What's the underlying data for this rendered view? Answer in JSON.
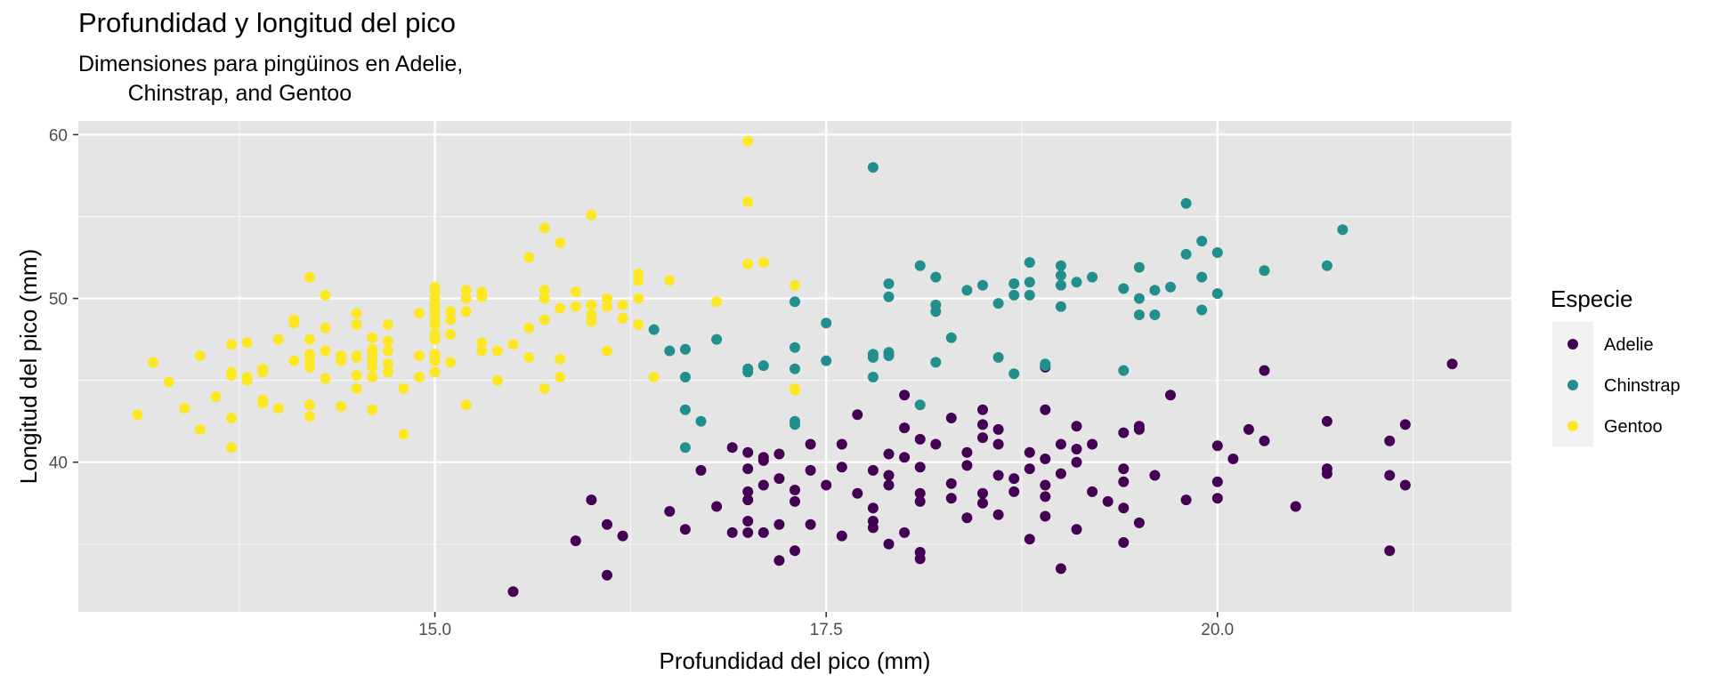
{
  "chart_data": {
    "type": "scatter",
    "title": "Profundidad y longitud del pico",
    "subtitle": "Dimensiones para pingüinos en Adelie,\n        Chinstrap, and Gentoo",
    "xlabel": "Profundidad del pico (mm)",
    "ylabel": "Longitud del pico (mm)",
    "xlim": [
      13.1,
      21.5
    ],
    "ylim": [
      32.1,
      59.6
    ],
    "x_ticks": [
      15.0,
      17.5,
      20.0
    ],
    "x_tick_labels": [
      "15.0",
      "17.5",
      "20.0"
    ],
    "y_ticks": [
      40,
      50,
      60
    ],
    "y_tick_labels": [
      "40",
      "50",
      "60"
    ],
    "grid": true,
    "legend": {
      "title": "Especie",
      "position": "right"
    },
    "series": [
      {
        "name": "Adelie",
        "color": "#440154",
        "points": [
          [
            15.5,
            32.1
          ],
          [
            16.1,
            33.1
          ],
          [
            19.0,
            33.5
          ],
          [
            17.2,
            34.0
          ],
          [
            18.1,
            34.1
          ],
          [
            18.1,
            34.5
          ],
          [
            17.3,
            34.6
          ],
          [
            21.1,
            34.6
          ],
          [
            16.2,
            35.5
          ],
          [
            15.9,
            35.2
          ],
          [
            17.6,
            35.5
          ],
          [
            17.9,
            35.0
          ],
          [
            18.8,
            35.3
          ],
          [
            19.4,
            35.1
          ],
          [
            18.0,
            35.7
          ],
          [
            16.6,
            35.9
          ],
          [
            16.9,
            35.7
          ],
          [
            17.0,
            35.7
          ],
          [
            17.1,
            35.7
          ],
          [
            17.8,
            36.0
          ],
          [
            19.1,
            35.9
          ],
          [
            16.1,
            36.2
          ],
          [
            16.5,
            37.0
          ],
          [
            17.0,
            36.4
          ],
          [
            17.2,
            36.2
          ],
          [
            17.4,
            36.2
          ],
          [
            17.8,
            36.4
          ],
          [
            18.4,
            36.6
          ],
          [
            18.6,
            36.8
          ],
          [
            18.9,
            36.7
          ],
          [
            19.5,
            36.3
          ],
          [
            19.4,
            37.2
          ],
          [
            20.5,
            37.3
          ],
          [
            20.7,
            39.3
          ],
          [
            16.0,
            37.7
          ],
          [
            16.8,
            37.3
          ],
          [
            17.0,
            37.7
          ],
          [
            17.3,
            37.6
          ],
          [
            17.8,
            37.2
          ],
          [
            18.1,
            37.6
          ],
          [
            18.3,
            37.8
          ],
          [
            18.5,
            37.5
          ],
          [
            18.9,
            37.9
          ],
          [
            19.3,
            37.6
          ],
          [
            19.8,
            37.7
          ],
          [
            20.0,
            37.8
          ],
          [
            17.0,
            38.2
          ],
          [
            17.1,
            38.6
          ],
          [
            17.2,
            39.0
          ],
          [
            17.3,
            38.3
          ],
          [
            17.5,
            38.6
          ],
          [
            17.7,
            38.1
          ],
          [
            17.9,
            38.6
          ],
          [
            18.1,
            38.1
          ],
          [
            18.3,
            38.7
          ],
          [
            18.5,
            38.1
          ],
          [
            18.7,
            38.2
          ],
          [
            18.9,
            38.6
          ],
          [
            19.2,
            38.2
          ],
          [
            19.4,
            38.8
          ],
          [
            20.0,
            38.8
          ],
          [
            20.1,
            40.2
          ],
          [
            21.2,
            38.6
          ],
          [
            21.1,
            39.2
          ],
          [
            16.7,
            39.5
          ],
          [
            17.0,
            39.6
          ],
          [
            17.1,
            40.3
          ],
          [
            17.4,
            39.5
          ],
          [
            17.6,
            39.7
          ],
          [
            17.8,
            39.5
          ],
          [
            17.9,
            39.2
          ],
          [
            18.1,
            39.7
          ],
          [
            18.4,
            39.8
          ],
          [
            18.6,
            39.2
          ],
          [
            18.7,
            39.0
          ],
          [
            18.8,
            39.6
          ],
          [
            19.0,
            39.3
          ],
          [
            19.1,
            40.0
          ],
          [
            19.4,
            39.6
          ],
          [
            19.6,
            39.2
          ],
          [
            20.7,
            39.6
          ],
          [
            16.9,
            40.9
          ],
          [
            17.0,
            40.6
          ],
          [
            17.1,
            40.1
          ],
          [
            17.2,
            40.5
          ],
          [
            17.4,
            41.1
          ],
          [
            17.6,
            41.1
          ],
          [
            17.9,
            40.5
          ],
          [
            18.0,
            40.3
          ],
          [
            18.2,
            41.1
          ],
          [
            18.4,
            40.6
          ],
          [
            18.5,
            41.5
          ],
          [
            18.6,
            41.1
          ],
          [
            18.8,
            40.6
          ],
          [
            18.9,
            40.2
          ],
          [
            19.0,
            41.1
          ],
          [
            19.1,
            40.8
          ],
          [
            19.2,
            41.1
          ],
          [
            20.0,
            41.0
          ],
          [
            17.7,
            42.9
          ],
          [
            18.0,
            42.1
          ],
          [
            18.1,
            41.4
          ],
          [
            18.3,
            42.7
          ],
          [
            18.5,
            42.3
          ],
          [
            18.5,
            43.2
          ],
          [
            18.6,
            42.0
          ],
          [
            18.9,
            43.2
          ],
          [
            19.1,
            42.2
          ],
          [
            19.4,
            41.8
          ],
          [
            19.5,
            42.0
          ],
          [
            19.5,
            42.2
          ],
          [
            19.7,
            44.1
          ],
          [
            20.2,
            42.0
          ],
          [
            20.3,
            41.3
          ],
          [
            20.7,
            42.5
          ],
          [
            21.2,
            42.3
          ],
          [
            21.1,
            41.3
          ],
          [
            18.0,
            44.1
          ],
          [
            18.9,
            45.8
          ],
          [
            20.3,
            45.6
          ],
          [
            21.5,
            46.0
          ]
        ]
      },
      {
        "name": "Chinstrap",
        "color": "#21908C",
        "points": [
          [
            16.4,
            48.1
          ],
          [
            16.5,
            46.8
          ],
          [
            16.6,
            46.9
          ],
          [
            16.6,
            45.2
          ],
          [
            16.6,
            43.2
          ],
          [
            16.6,
            40.9
          ],
          [
            16.7,
            42.5
          ],
          [
            16.8,
            47.5
          ],
          [
            17.0,
            45.7
          ],
          [
            17.0,
            45.5
          ],
          [
            17.1,
            45.9
          ],
          [
            17.3,
            49.8
          ],
          [
            17.3,
            47.0
          ],
          [
            17.3,
            45.7
          ],
          [
            17.3,
            42.5
          ],
          [
            17.3,
            42.3
          ],
          [
            17.5,
            48.5
          ],
          [
            17.5,
            46.2
          ],
          [
            17.8,
            58.0
          ],
          [
            17.8,
            46.6
          ],
          [
            17.8,
            46.4
          ],
          [
            17.8,
            45.2
          ],
          [
            17.9,
            50.9
          ],
          [
            17.9,
            50.1
          ],
          [
            17.9,
            46.7
          ],
          [
            17.9,
            46.5
          ],
          [
            18.1,
            52.0
          ],
          [
            18.1,
            43.5
          ],
          [
            18.2,
            51.3
          ],
          [
            18.2,
            49.6
          ],
          [
            18.2,
            49.2
          ],
          [
            18.2,
            46.1
          ],
          [
            18.3,
            47.6
          ],
          [
            18.4,
            50.5
          ],
          [
            18.5,
            50.8
          ],
          [
            18.6,
            49.7
          ],
          [
            18.6,
            46.4
          ],
          [
            18.7,
            50.2
          ],
          [
            18.7,
            45.4
          ],
          [
            18.7,
            50.9
          ],
          [
            18.8,
            52.2
          ],
          [
            18.8,
            51.0
          ],
          [
            18.8,
            50.2
          ],
          [
            18.9,
            46.0
          ],
          [
            18.9,
            45.9
          ],
          [
            19.0,
            52.0
          ],
          [
            19.0,
            51.4
          ],
          [
            19.0,
            50.8
          ],
          [
            19.0,
            49.5
          ],
          [
            19.1,
            51.0
          ],
          [
            19.2,
            51.3
          ],
          [
            19.4,
            50.6
          ],
          [
            19.4,
            45.6
          ],
          [
            19.5,
            51.9
          ],
          [
            19.5,
            50.0
          ],
          [
            19.5,
            49.0
          ],
          [
            19.6,
            50.5
          ],
          [
            19.6,
            49.0
          ],
          [
            19.7,
            50.7
          ],
          [
            19.8,
            55.8
          ],
          [
            19.8,
            52.7
          ],
          [
            19.9,
            53.5
          ],
          [
            19.9,
            51.3
          ],
          [
            19.9,
            49.3
          ],
          [
            20.0,
            52.8
          ],
          [
            20.0,
            50.3
          ],
          [
            20.3,
            51.7
          ],
          [
            20.7,
            52.0
          ],
          [
            20.8,
            54.2
          ]
        ]
      },
      {
        "name": "Gentoo",
        "color": "#FDE725",
        "points": [
          [
            13.1,
            42.9
          ],
          [
            13.2,
            46.1
          ],
          [
            13.3,
            44.9
          ],
          [
            13.4,
            43.3
          ],
          [
            13.5,
            46.5
          ],
          [
            13.5,
            42.0
          ],
          [
            13.6,
            44.0
          ],
          [
            13.7,
            47.2
          ],
          [
            13.7,
            45.5
          ],
          [
            13.7,
            45.3
          ],
          [
            13.7,
            42.7
          ],
          [
            13.7,
            40.9
          ],
          [
            13.8,
            47.3
          ],
          [
            13.8,
            45.0
          ],
          [
            13.8,
            45.2
          ],
          [
            13.9,
            45.5
          ],
          [
            13.9,
            43.8
          ],
          [
            13.9,
            45.7
          ],
          [
            13.9,
            43.6
          ],
          [
            14.0,
            47.5
          ],
          [
            14.0,
            43.3
          ],
          [
            14.1,
            48.7
          ],
          [
            14.1,
            48.5
          ],
          [
            14.1,
            46.2
          ],
          [
            14.2,
            47.5
          ],
          [
            14.2,
            46.6
          ],
          [
            14.2,
            46.3
          ],
          [
            14.2,
            45.8
          ],
          [
            14.2,
            43.5
          ],
          [
            14.2,
            42.8
          ],
          [
            14.2,
            51.3
          ],
          [
            14.3,
            50.2
          ],
          [
            14.3,
            48.2
          ],
          [
            14.3,
            46.8
          ],
          [
            14.3,
            45.1
          ],
          [
            14.4,
            46.5
          ],
          [
            14.4,
            46.2
          ],
          [
            14.4,
            43.4
          ],
          [
            14.5,
            48.4
          ],
          [
            14.5,
            46.4
          ],
          [
            14.5,
            45.3
          ],
          [
            14.5,
            44.5
          ],
          [
            14.5,
            49.1
          ],
          [
            14.5,
            46.5
          ],
          [
            14.6,
            47.6
          ],
          [
            14.6,
            46.9
          ],
          [
            14.6,
            46.6
          ],
          [
            14.6,
            46.2
          ],
          [
            14.6,
            45.8
          ],
          [
            14.6,
            45.2
          ],
          [
            14.6,
            43.2
          ],
          [
            14.7,
            48.4
          ],
          [
            14.7,
            47.4
          ],
          [
            14.7,
            46.8
          ],
          [
            14.7,
            46.0
          ],
          [
            14.7,
            45.5
          ],
          [
            14.8,
            44.5
          ],
          [
            14.8,
            41.7
          ],
          [
            14.9,
            49.1
          ],
          [
            14.9,
            46.5
          ],
          [
            14.9,
            45.2
          ],
          [
            15.0,
            50.7
          ],
          [
            15.0,
            50.4
          ],
          [
            15.0,
            50.0
          ],
          [
            15.0,
            49.6
          ],
          [
            15.0,
            49.2
          ],
          [
            15.0,
            48.8
          ],
          [
            15.0,
            48.4
          ],
          [
            15.0,
            47.8
          ],
          [
            15.0,
            47.5
          ],
          [
            15.0,
            46.6
          ],
          [
            15.0,
            46.4
          ],
          [
            15.0,
            45.5
          ],
          [
            15.0,
            46.2
          ],
          [
            15.1,
            49.2
          ],
          [
            15.1,
            48.7
          ],
          [
            15.1,
            47.8
          ],
          [
            15.1,
            46.1
          ],
          [
            15.2,
            50.5
          ],
          [
            15.2,
            50.0
          ],
          [
            15.2,
            49.2
          ],
          [
            15.2,
            43.5
          ],
          [
            15.3,
            50.4
          ],
          [
            15.3,
            50.1
          ],
          [
            15.3,
            47.3
          ],
          [
            15.3,
            46.8
          ],
          [
            15.4,
            46.8
          ],
          [
            15.4,
            45.0
          ],
          [
            15.5,
            47.2
          ],
          [
            15.6,
            52.5
          ],
          [
            15.6,
            48.2
          ],
          [
            15.6,
            46.4
          ],
          [
            15.7,
            54.3
          ],
          [
            15.7,
            50.5
          ],
          [
            15.7,
            50.0
          ],
          [
            15.7,
            48.7
          ],
          [
            15.7,
            44.5
          ],
          [
            15.8,
            53.4
          ],
          [
            15.8,
            49.4
          ],
          [
            15.8,
            46.3
          ],
          [
            15.8,
            45.2
          ],
          [
            15.9,
            50.4
          ],
          [
            15.9,
            49.5
          ],
          [
            16.0,
            55.1
          ],
          [
            16.0,
            49.6
          ],
          [
            16.0,
            48.6
          ],
          [
            16.0,
            49.0
          ],
          [
            16.1,
            50.0
          ],
          [
            16.1,
            49.5
          ],
          [
            16.1,
            46.8
          ],
          [
            16.2,
            49.6
          ],
          [
            16.2,
            48.8
          ],
          [
            16.3,
            51.5
          ],
          [
            16.3,
            51.1
          ],
          [
            16.3,
            50.0
          ],
          [
            16.3,
            48.4
          ],
          [
            16.4,
            45.2
          ],
          [
            16.5,
            51.1
          ],
          [
            16.8,
            49.8
          ],
          [
            17.0,
            59.6
          ],
          [
            17.0,
            55.9
          ],
          [
            17.0,
            52.1
          ],
          [
            17.1,
            52.2
          ],
          [
            17.3,
            50.8
          ],
          [
            17.3,
            44.5
          ],
          [
            17.3,
            44.4
          ]
        ]
      }
    ]
  }
}
